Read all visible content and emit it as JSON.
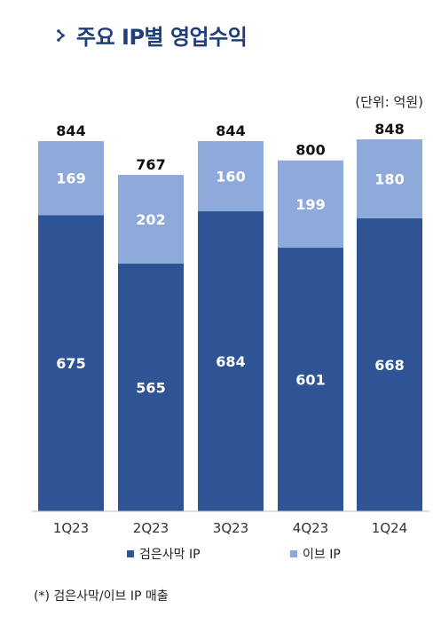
{
  "header": {
    "title": "주요 IP별 영업수익",
    "unit": "(단위: 억원)"
  },
  "colors": {
    "bottom_series": "#2f5496",
    "top_series": "#8eaadb",
    "title": "#1f3f7a"
  },
  "chart_data": {
    "type": "bar",
    "stacked": true,
    "title": "주요 IP별 영업수익",
    "categories": [
      "1Q23",
      "2Q23",
      "3Q23",
      "4Q23",
      "1Q24"
    ],
    "series": [
      {
        "name": "검은사막 IP",
        "values": [
          675,
          565,
          684,
          601,
          668
        ]
      },
      {
        "name": "이브 IP",
        "values": [
          169,
          202,
          160,
          199,
          180
        ]
      }
    ],
    "totals": [
      844,
      767,
      844,
      800,
      848
    ],
    "ylim": [
      0,
      848
    ],
    "grid": false,
    "legend_position": "bottom"
  },
  "legend": {
    "items": [
      "검은사막 IP",
      "이브 IP"
    ]
  },
  "footnote": "(*) 검은사막/이브 IP 매출"
}
